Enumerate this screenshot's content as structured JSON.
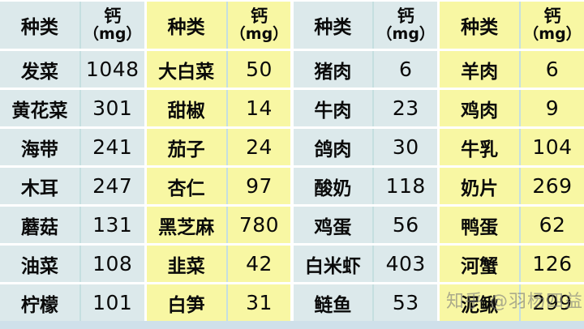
{
  "table": {
    "header": {
      "type_label": "种类",
      "calcium_line1": "钙",
      "calcium_line2": "（mg）"
    },
    "groups": [
      {
        "theme": "blue",
        "rows": [
          {
            "name": "发菜",
            "value": "1048"
          },
          {
            "name": "黄花菜",
            "value": "301"
          },
          {
            "name": "海带",
            "value": "241"
          },
          {
            "name": "木耳",
            "value": "247"
          },
          {
            "name": "蘑菇",
            "value": "131"
          },
          {
            "name": "油菜",
            "value": "108"
          },
          {
            "name": "柠檬",
            "value": "101"
          }
        ]
      },
      {
        "theme": "yellow",
        "rows": [
          {
            "name": "大白菜",
            "value": "50"
          },
          {
            "name": "甜椒",
            "value": "14"
          },
          {
            "name": "茄子",
            "value": "24"
          },
          {
            "name": "杏仁",
            "value": "97"
          },
          {
            "name": "黑芝麻",
            "value": "780"
          },
          {
            "name": "韭菜",
            "value": "42"
          },
          {
            "name": "白笋",
            "value": "31"
          }
        ]
      },
      {
        "theme": "blue",
        "rows": [
          {
            "name": "猪肉",
            "value": "6"
          },
          {
            "name": "牛肉",
            "value": "23"
          },
          {
            "name": "鸽肉",
            "value": "30"
          },
          {
            "name": "酸奶",
            "value": "118"
          },
          {
            "name": "鸡蛋",
            "value": "56"
          },
          {
            "name": "白米虾",
            "value": "403"
          },
          {
            "name": "鲢鱼",
            "value": "53"
          }
        ]
      },
      {
        "theme": "yellow",
        "rows": [
          {
            "name": "羊肉",
            "value": "6"
          },
          {
            "name": "鸡肉",
            "value": "9"
          },
          {
            "name": "牛乳",
            "value": "104"
          },
          {
            "name": "奶片",
            "value": "269"
          },
          {
            "name": "鸭蛋",
            "value": "62"
          },
          {
            "name": "河蟹",
            "value": "126"
          },
          {
            "name": "泥鳅",
            "value": "299"
          }
        ]
      }
    ]
  },
  "watermark": {
    "text": "知乎 @羽杨四益"
  },
  "colors": {
    "blue_bg": "#dce9eb",
    "yellow_bg": "#f8f7a3",
    "divider": "#c5dfe0",
    "bottom_strip": "#cfe0ea",
    "text": "#0a0a0a"
  }
}
